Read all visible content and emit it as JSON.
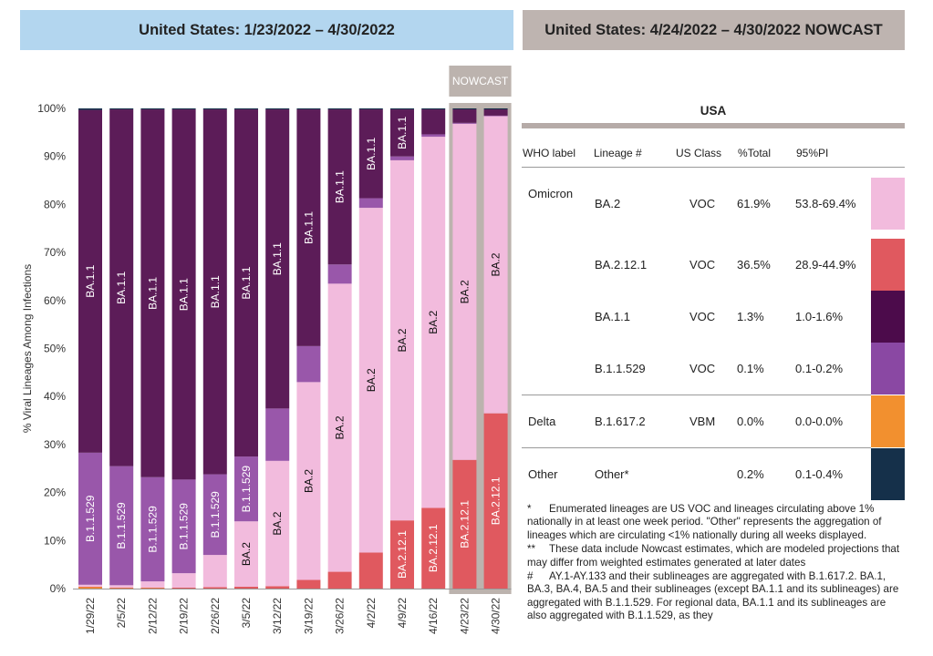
{
  "header_left": "United States: 1/23/2022 – 4/30/2022",
  "header_right": "United States: 4/24/2022 – 4/30/2022 NOWCAST",
  "nowcast_label": "NOWCAST",
  "colors": {
    "BA.2": "#f2bbdd",
    "BA.2.12.1": "#e0595f",
    "BA.1.1": "#5c1c58",
    "B.1.1.529": "#9957aa",
    "B.1.617.2": "#f2902f",
    "Other": "#0e2b45",
    "nowcast_frame": "#bcb3ae",
    "header_left_bg": "#b3d6ef",
    "header_right_bg": "#beb4b0"
  },
  "chart_data": {
    "type": "bar",
    "stacked": true,
    "ylabel": "% Viral Lineages Among Infections",
    "ylim": [
      0,
      100
    ],
    "yticks": [
      "0%",
      "10%",
      "20%",
      "30%",
      "40%",
      "50%",
      "60%",
      "70%",
      "80%",
      "90%",
      "100%"
    ],
    "categories": [
      "1/29/22",
      "2/5/22",
      "2/12/22",
      "2/19/22",
      "2/26/22",
      "3/5/22",
      "3/12/22",
      "3/19/22",
      "3/26/22",
      "4/2/22",
      "4/9/22",
      "4/16/22",
      "4/23/22",
      "4/30/22"
    ],
    "nowcast_categories": [
      "4/23/22",
      "4/30/22"
    ],
    "series": [
      {
        "name": "B.1.617.2",
        "values": [
          0.3,
          0.1,
          0.1,
          0.0,
          0.0,
          0.0,
          0.0,
          0.0,
          0.0,
          0.0,
          0.0,
          0.0,
          0.0,
          0.0
        ]
      },
      {
        "name": "BA.2.12.1",
        "values": [
          0.1,
          0.1,
          0.1,
          0.2,
          0.3,
          0.4,
          0.5,
          1.8,
          3.5,
          7.5,
          14.2,
          16.8,
          26.8,
          36.5
        ]
      },
      {
        "name": "BA.2",
        "values": [
          0.4,
          0.5,
          1.3,
          3.0,
          6.7,
          13.6,
          26.1,
          41.2,
          60.0,
          71.8,
          75.0,
          77.3,
          70.0,
          61.9
        ]
      },
      {
        "name": "B.1.1.529",
        "values": [
          27.5,
          24.8,
          21.7,
          19.5,
          16.8,
          13.5,
          10.9,
          7.5,
          4.0,
          2.0,
          0.8,
          0.5,
          0.2,
          0.1
        ]
      },
      {
        "name": "BA.1.1",
        "values": [
          71.4,
          74.3,
          76.6,
          77.1,
          76.0,
          72.3,
          62.3,
          49.3,
          32.3,
          18.5,
          9.8,
          5.2,
          2.8,
          1.3
        ]
      },
      {
        "name": "Other",
        "values": [
          0.3,
          0.2,
          0.2,
          0.2,
          0.2,
          0.2,
          0.2,
          0.2,
          0.2,
          0.2,
          0.2,
          0.2,
          0.2,
          0.2
        ]
      }
    ],
    "bar_labels": [
      {
        "bar": 0,
        "series": "BA.1.1",
        "text": "BA.1.1"
      },
      {
        "bar": 0,
        "series": "B.1.1.529",
        "text": "B.1.1.529"
      },
      {
        "bar": 1,
        "series": "BA.1.1",
        "text": "BA.1.1"
      },
      {
        "bar": 1,
        "series": "B.1.1.529",
        "text": "B.1.1.529"
      },
      {
        "bar": 2,
        "series": "BA.1.1",
        "text": "BA.1.1"
      },
      {
        "bar": 2,
        "series": "B.1.1.529",
        "text": "B.1.1.529"
      },
      {
        "bar": 3,
        "series": "BA.1.1",
        "text": "BA.1.1"
      },
      {
        "bar": 3,
        "series": "B.1.1.529",
        "text": "B.1.1.529"
      },
      {
        "bar": 4,
        "series": "BA.1.1",
        "text": "BA.1.1"
      },
      {
        "bar": 4,
        "series": "B.1.1.529",
        "text": "B.1.1.529"
      },
      {
        "bar": 5,
        "series": "BA.1.1",
        "text": "BA.1.1"
      },
      {
        "bar": 5,
        "series": "B.1.1.529",
        "text": "B.1.1.529"
      },
      {
        "bar": 5,
        "series": "BA.2",
        "text": "BA.2"
      },
      {
        "bar": 6,
        "series": "BA.1.1",
        "text": "BA.1.1"
      },
      {
        "bar": 6,
        "series": "BA.2",
        "text": "BA.2"
      },
      {
        "bar": 7,
        "series": "BA.1.1",
        "text": "BA.1.1"
      },
      {
        "bar": 7,
        "series": "BA.2",
        "text": "BA.2"
      },
      {
        "bar": 8,
        "series": "BA.1.1",
        "text": "BA.1.1"
      },
      {
        "bar": 8,
        "series": "BA.2",
        "text": "BA.2"
      },
      {
        "bar": 9,
        "series": "BA.1.1",
        "text": "BA.1.1"
      },
      {
        "bar": 9,
        "series": "BA.2",
        "text": "BA.2"
      },
      {
        "bar": 10,
        "series": "BA.1.1",
        "text": "BA.1.1"
      },
      {
        "bar": 10,
        "series": "BA.2",
        "text": "BA.2"
      },
      {
        "bar": 10,
        "series": "BA.2.12.1",
        "text": "BA.2.12.1"
      },
      {
        "bar": 11,
        "series": "BA.2",
        "text": "BA.2"
      },
      {
        "bar": 11,
        "series": "BA.2.12.1",
        "text": "BA.2.12.1"
      },
      {
        "bar": 12,
        "series": "BA.2",
        "text": "BA.2"
      },
      {
        "bar": 12,
        "series": "BA.2.12.1",
        "text": "BA.2.12.1"
      },
      {
        "bar": 13,
        "series": "BA.2",
        "text": "BA.2"
      },
      {
        "bar": 13,
        "series": "BA.2.12.1",
        "text": "BA.2.12.1"
      }
    ]
  },
  "table": {
    "title": "USA",
    "headers": [
      "WHO label",
      "Lineage #",
      "US Class",
      "%Total",
      "95%PI"
    ],
    "rows": [
      {
        "who": "Omicron",
        "lineage": "BA.2",
        "class": "VOC",
        "total": "61.9%",
        "pi": "53.8-69.4%",
        "color": "#f2bbdd",
        "group_end": false
      },
      {
        "who": "",
        "lineage": "BA.2.12.1",
        "class": "VOC",
        "total": "36.5%",
        "pi": "28.9-44.9%",
        "color": "#e0595f",
        "group_end": false
      },
      {
        "who": "",
        "lineage": "BA.1.1",
        "class": "VOC",
        "total": "1.3%",
        "pi": "1.0-1.6%",
        "color": "#4c0b4b",
        "group_end": false
      },
      {
        "who": "",
        "lineage": "B.1.1.529",
        "class": "VOC",
        "total": "0.1%",
        "pi": "0.1-0.2%",
        "color": "#8a48a3",
        "group_end": true
      },
      {
        "who": "Delta",
        "lineage": "B.1.617.2",
        "class": "VBM",
        "total": "0.0%",
        "pi": "0.0-0.0%",
        "color": "#f2902f",
        "group_end": true
      },
      {
        "who": "Other",
        "lineage": "Other*",
        "class": "",
        "total": "0.2%",
        "pi": "0.1-0.4%",
        "color": "#15304a",
        "group_end": false
      }
    ]
  },
  "footnotes": [
    {
      "mark": "*",
      "text": "Enumerated lineages are US VOC and lineages circulating above 1% nationally in at least one week period. \"Other\" represents the aggregation of lineages which are circulating <1% nationally during all weeks displayed."
    },
    {
      "mark": "**",
      "text": "These data include Nowcast estimates, which are modeled projections that may differ from weighted estimates generated at later dates"
    },
    {
      "mark": "#",
      "text": "AY.1-AY.133 and their sublineages are aggregated with B.1.617.2. BA.1, BA.3, BA.4, BA.5 and their sublineages (except BA.1.1 and its sublineages) are aggregated with B.1.1.529. For regional data, BA.1.1 and its sublineages are also aggregated with B.1.1.529, as they"
    }
  ]
}
